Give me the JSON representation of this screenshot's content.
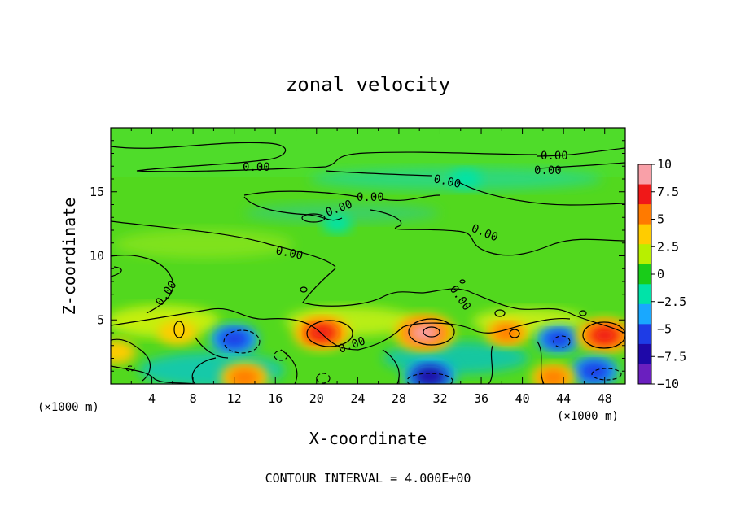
{
  "chart_data": {
    "type": "heatmap",
    "title": "zonal velocity",
    "xlabel": "X-coordinate",
    "ylabel": "Z-coordinate",
    "x_unit": "(×1000 m)",
    "z_unit": "(×1000 m)",
    "xlim": [
      0,
      50
    ],
    "ylim": [
      0,
      20
    ],
    "x_ticks": [
      4,
      8,
      12,
      16,
      20,
      24,
      28,
      32,
      36,
      40,
      44,
      48
    ],
    "y_ticks": [
      5,
      10,
      15
    ],
    "colorbar": {
      "min": -10,
      "max": 10,
      "ticks": [
        "10",
        "7.5",
        "5",
        "2.5",
        "0",
        "-2.5",
        "-5",
        "-7.5",
        "-10"
      ],
      "colors": [
        "#f9a0a8",
        "#f01818",
        "#ff7a00",
        "#ffcc00",
        "#b8ef00",
        "#19cc19",
        "#00e3a8",
        "#19a8ff",
        "#1e3ce6",
        "#1e08a8",
        "#6a1fbf"
      ]
    },
    "contour_labels": [
      "0.00",
      "0.00",
      "0.00",
      "0.00",
      "0.00",
      "0.00",
      "0.00",
      "0.00",
      "0.00",
      "0.00",
      "0.00"
    ],
    "contour_interval_text": "CONTOUR INTERVAL = 4.000E+00",
    "features": [
      {
        "x": 6.5,
        "z": 4.0,
        "value": 4
      },
      {
        "x": 12.0,
        "z": 3.5,
        "value": -6
      },
      {
        "x": 13.0,
        "z": 0.5,
        "value": 6
      },
      {
        "x": 20.5,
        "z": 4.0,
        "value": 8
      },
      {
        "x": 30.5,
        "z": 4.0,
        "value": 9
      },
      {
        "x": 31.0,
        "z": 0.6,
        "value": -7
      },
      {
        "x": 38.5,
        "z": 4.0,
        "value": 5
      },
      {
        "x": 43.5,
        "z": 3.5,
        "value": -5
      },
      {
        "x": 48.0,
        "z": 3.8,
        "value": 8
      },
      {
        "x": 47.0,
        "z": 1.0,
        "value": -6
      },
      {
        "x": 0.5,
        "z": 2.5,
        "value": 4
      },
      {
        "x": 43.0,
        "z": 0.5,
        "value": 5
      },
      {
        "x": 34.5,
        "z": 16.0,
        "value": -2
      },
      {
        "x": 22.0,
        "z": 12.5,
        "value": -1.5
      }
    ]
  }
}
